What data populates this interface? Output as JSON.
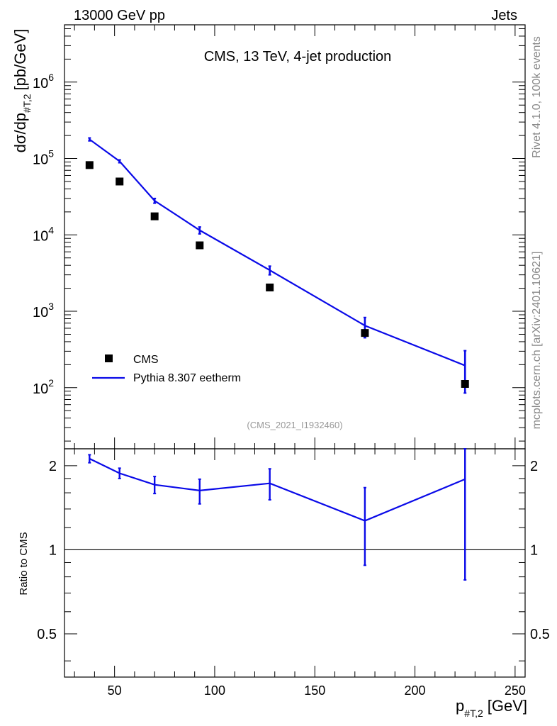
{
  "header": {
    "left": "13000 GeV pp",
    "right": "Jets"
  },
  "side_labels": {
    "rivet": "Rivet 4.1.0,  100k events",
    "mcplots": "mcplots.cern.ch [arXiv:2401.10621]"
  },
  "chart_data": {
    "type": "scatter",
    "title": "CMS, 13 TeV, 4-jet production",
    "watermark": "(CMS_2021_I1932460)",
    "xlabel": "p",
    "xlabel_sub": "#T,2",
    "xlabel_unit": "[GeV]",
    "ylabel": "dσ/dp",
    "ylabel_sub": "#T,2",
    "ylabel_unit": "[pb/GeV]",
    "ratio_ylabel": "Ratio to CMS",
    "xlim": [
      25,
      255
    ],
    "xticks": [
      {
        "value": 50,
        "label": "50"
      },
      {
        "value": 100,
        "label": "100"
      },
      {
        "value": 150,
        "label": "150"
      },
      {
        "value": 200,
        "label": "200"
      },
      {
        "value": 250,
        "label": "250"
      }
    ],
    "ylim_log": [
      1.2,
      6.75
    ],
    "yticks": [
      {
        "exp": 2,
        "base": "10",
        "sup": "2"
      },
      {
        "exp": 3,
        "base": "10",
        "sup": "3"
      },
      {
        "exp": 4,
        "base": "10",
        "sup": "4"
      },
      {
        "exp": 5,
        "base": "10",
        "sup": "5"
      },
      {
        "exp": 6,
        "base": "10",
        "sup": "6"
      }
    ],
    "ratio_ylim": [
      0.35,
      2.3
    ],
    "ratio_yticks": [
      {
        "value": 0.5,
        "label": "0.5"
      },
      {
        "value": 1,
        "label": "1"
      },
      {
        "value": 2,
        "label": "2"
      }
    ],
    "legend": [
      {
        "label": "CMS",
        "marker": "square"
      },
      {
        "label": "Pythia 8.307 eetherm",
        "marker": "line"
      }
    ],
    "colors": {
      "data": "#000000",
      "mc": "#0a0ae8",
      "watermark": "#999999",
      "side": "#888888"
    },
    "series": [
      {
        "name": "CMS",
        "x": [
          37.5,
          52.5,
          70,
          92.5,
          127.5,
          175,
          225
        ],
        "y": [
          82000,
          50000,
          17500,
          7300,
          2050,
          520,
          112
        ]
      },
      {
        "name": "Pythia 8.307 eetherm",
        "x": [
          37.5,
          52.5,
          70,
          92.5,
          127.5,
          175,
          225
        ],
        "y": [
          178000,
          92000,
          28000,
          11500,
          3450,
          650,
          195
        ],
        "yerr_lo": [
          8000,
          4000,
          2000,
          1200,
          450,
          200,
          110
        ],
        "yerr_hi": [
          8000,
          4000,
          2000,
          1200,
          450,
          180,
          110
        ]
      }
    ],
    "ratio": {
      "x": [
        37.5,
        52.5,
        70,
        92.5,
        127.5,
        175,
        225
      ],
      "y": [
        2.12,
        1.88,
        1.71,
        1.63,
        1.73,
        1.27,
        1.79
      ],
      "lo": [
        2.05,
        1.8,
        1.59,
        1.46,
        1.51,
        0.88,
        0.78
      ],
      "hi": [
        2.19,
        1.96,
        1.83,
        1.79,
        1.95,
        1.67,
        2.3
      ]
    }
  }
}
